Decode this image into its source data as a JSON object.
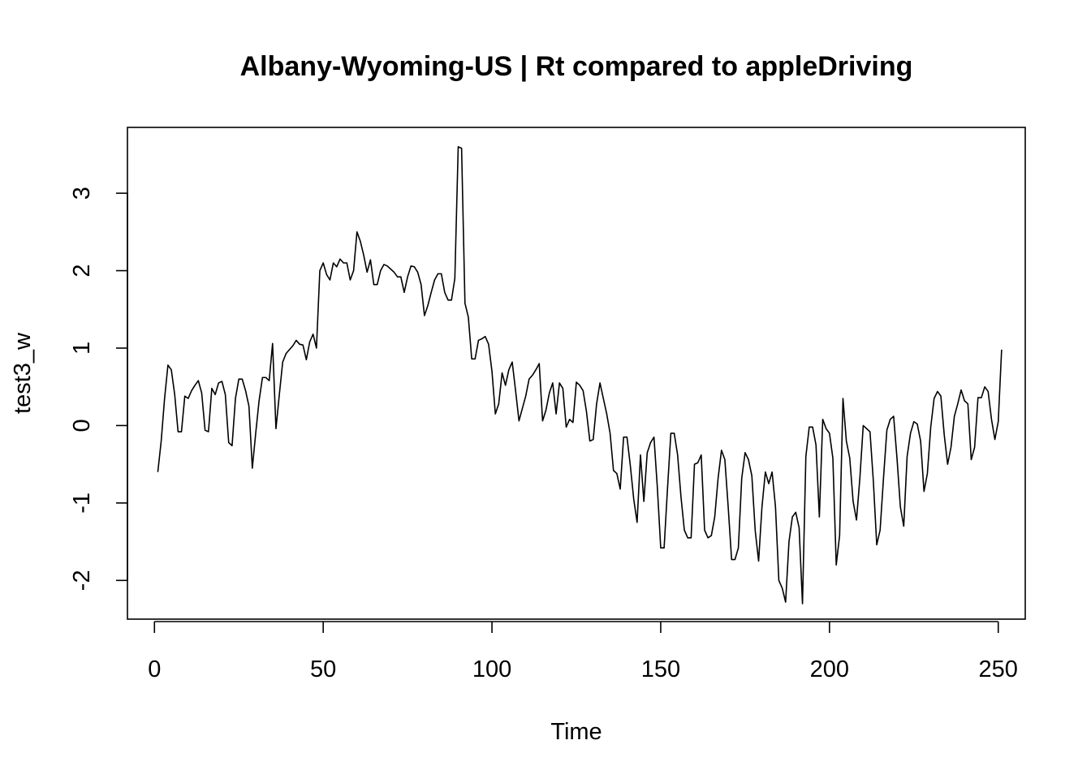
{
  "chart_data": {
    "type": "line",
    "title": "Albany-Wyoming-US | Rt compared to appleDriving",
    "xlabel": "Time",
    "ylabel": "test3_w",
    "xlim": [
      -8,
      258
    ],
    "ylim": [
      -2.5,
      3.85
    ],
    "x_ticks": [
      0,
      50,
      100,
      150,
      200,
      250
    ],
    "y_ticks": [
      -2,
      -1,
      0,
      1,
      2,
      3
    ],
    "grid": false,
    "series": [
      {
        "x_start": 1,
        "x_step": 1,
        "values": [
          -0.6,
          -0.2,
          0.35,
          0.78,
          0.72,
          0.4,
          -0.08,
          -0.08,
          0.38,
          0.35,
          0.45,
          0.52,
          0.58,
          0.42,
          -0.06,
          -0.08,
          0.48,
          0.4,
          0.55,
          0.57,
          0.4,
          -0.22,
          -0.26,
          0.35,
          0.6,
          0.6,
          0.45,
          0.25,
          -0.55,
          -0.1,
          0.32,
          0.62,
          0.62,
          0.58,
          1.06,
          -0.04,
          0.4,
          0.82,
          0.93,
          0.98,
          1.03,
          1.1,
          1.05,
          1.04,
          0.85,
          1.08,
          1.18,
          1.0,
          2.0,
          2.1,
          1.95,
          1.88,
          2.1,
          2.05,
          2.15,
          2.1,
          2.1,
          1.88,
          2.0,
          2.5,
          2.38,
          2.2,
          1.98,
          2.14,
          1.82,
          1.82,
          2.0,
          2.08,
          2.06,
          2.02,
          1.98,
          1.92,
          1.92,
          1.72,
          1.92,
          2.06,
          2.05,
          1.98,
          1.82,
          1.42,
          1.55,
          1.72,
          1.88,
          1.96,
          1.96,
          1.72,
          1.62,
          1.62,
          1.9,
          3.6,
          3.58,
          1.58,
          1.4,
          0.86,
          0.86,
          1.1,
          1.12,
          1.15,
          1.05,
          0.7,
          0.15,
          0.28,
          0.68,
          0.52,
          0.72,
          0.82,
          0.45,
          0.06,
          0.22,
          0.38,
          0.6,
          0.65,
          0.72,
          0.8,
          0.06,
          0.2,
          0.42,
          0.55,
          0.15,
          0.55,
          0.48,
          -0.02,
          0.08,
          0.04,
          0.56,
          0.52,
          0.45,
          0.18,
          -0.2,
          -0.18,
          0.28,
          0.55,
          0.35,
          0.15,
          -0.1,
          -0.58,
          -0.62,
          -0.82,
          -0.15,
          -0.15,
          -0.52,
          -0.95,
          -1.25,
          -0.38,
          -0.98,
          -0.35,
          -0.22,
          -0.15,
          -0.8,
          -1.58,
          -1.58,
          -0.82,
          -0.1,
          -0.1,
          -0.38,
          -0.92,
          -1.35,
          -1.45,
          -1.45,
          -0.5,
          -0.48,
          -0.38,
          -1.35,
          -1.45,
          -1.42,
          -1.18,
          -0.68,
          -0.32,
          -0.44,
          -1.06,
          -1.73,
          -1.73,
          -1.58,
          -0.68,
          -0.35,
          -0.44,
          -0.65,
          -1.36,
          -1.75,
          -1.05,
          -0.6,
          -0.75,
          -0.6,
          -1.05,
          -2.0,
          -2.1,
          -2.28,
          -1.5,
          -1.18,
          -1.12,
          -1.32,
          -2.3,
          -0.4,
          -0.02,
          -0.02,
          -0.25,
          -1.18,
          0.08,
          -0.04,
          -0.1,
          -0.42,
          -1.8,
          -1.42,
          0.35,
          -0.2,
          -0.42,
          -0.98,
          -1.22,
          -0.68,
          0.0,
          -0.04,
          -0.08,
          -0.72,
          -1.54,
          -1.35,
          -0.68,
          -0.06,
          0.08,
          0.12,
          -0.42,
          -1.05,
          -1.3,
          -0.4,
          -0.1,
          0.05,
          0.02,
          -0.2,
          -0.85,
          -0.62,
          -0.02,
          0.35,
          0.44,
          0.38,
          -0.12,
          -0.5,
          -0.28,
          0.12,
          0.28,
          0.46,
          0.32,
          0.28,
          -0.44,
          -0.28,
          0.36,
          0.36,
          0.5,
          0.44,
          0.08,
          -0.18,
          0.05,
          0.98
        ]
      }
    ]
  }
}
